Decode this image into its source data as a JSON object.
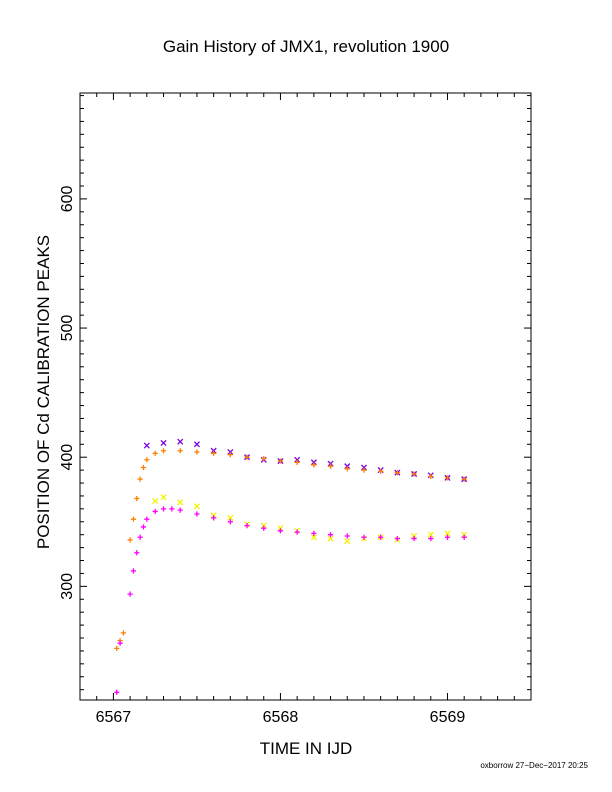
{
  "chart_data": {
    "type": "scatter",
    "title": "Gain History of JMX1, revolution 1900",
    "xlabel": "TIME IN IJD",
    "ylabel": "POSITION OF Cd CALIBRATION PEAKS",
    "xlim": [
      6566.8,
      6569.5
    ],
    "ylim": [
      212,
      682
    ],
    "x_ticks": [
      "6567",
      "6568",
      "6569"
    ],
    "y_ticks": [
      "300",
      "400",
      "500",
      "600"
    ],
    "grid": false,
    "legend": "none",
    "colors": {
      "upper_measured": "#7b00e0",
      "upper_fit": "#ff7f00",
      "lower_measured": "#f2f200",
      "lower_fit": "#ff00ff"
    },
    "series": [
      {
        "marker": "x",
        "color": "#7b00e0",
        "x": [
          6567.2,
          6567.3,
          6567.4,
          6567.5,
          6567.6,
          6567.7,
          6567.8,
          6567.9,
          6568.0,
          6568.1,
          6568.2,
          6568.3,
          6568.4,
          6568.5,
          6568.6,
          6568.7,
          6568.8,
          6568.9,
          6569.0,
          6569.1
        ],
        "y": [
          409,
          411,
          412,
          410,
          405,
          404,
          400,
          398,
          397,
          398,
          396,
          395,
          393,
          392,
          390,
          388,
          387,
          386,
          384,
          383
        ]
      },
      {
        "marker": "+",
        "color": "#ff7f00",
        "x": [
          6567.02,
          6567.04,
          6567.06,
          6567.1,
          6567.12,
          6567.14,
          6567.16,
          6567.18,
          6567.2,
          6567.25,
          6567.3,
          6567.4,
          6567.5,
          6567.6,
          6567.7,
          6567.8,
          6567.9,
          6568.0,
          6568.1,
          6568.2,
          6568.3,
          6568.4,
          6568.5,
          6568.6,
          6568.7,
          6568.8,
          6568.9,
          6569.0,
          6569.1
        ],
        "y": [
          252,
          258,
          264,
          336,
          352,
          368,
          383,
          392,
          398,
          403,
          405,
          405,
          404,
          403,
          402,
          400,
          399,
          397,
          396,
          394,
          393,
          391,
          390,
          389,
          388,
          387,
          385,
          384,
          383
        ]
      },
      {
        "marker": "x",
        "color": "#f2f200",
        "x": [
          6567.25,
          6567.3,
          6567.4,
          6567.5,
          6567.6,
          6567.7,
          6567.8,
          6567.9,
          6568.0,
          6568.1,
          6568.2,
          6568.3,
          6568.4,
          6568.5,
          6568.6,
          6568.7,
          6568.8,
          6568.9,
          6569.0,
          6569.1
        ],
        "y": [
          366,
          369,
          365,
          362,
          355,
          353,
          348,
          347,
          345,
          343,
          338,
          337,
          335,
          337,
          338,
          336,
          339,
          340,
          341,
          340
        ]
      },
      {
        "marker": "+",
        "color": "#ff00ff",
        "x": [
          6567.02,
          6567.04,
          6567.1,
          6567.12,
          6567.14,
          6567.16,
          6567.18,
          6567.2,
          6567.25,
          6567.3,
          6567.35,
          6567.4,
          6567.5,
          6567.6,
          6567.7,
          6567.8,
          6567.9,
          6568.0,
          6568.1,
          6568.2,
          6568.3,
          6568.4,
          6568.5,
          6568.6,
          6568.7,
          6568.8,
          6568.9,
          6569.0,
          6569.1
        ],
        "y": [
          218,
          256,
          294,
          312,
          326,
          338,
          346,
          352,
          358,
          360,
          360,
          359,
          356,
          353,
          350,
          347,
          345,
          343,
          342,
          341,
          340,
          339,
          338,
          338,
          337,
          337,
          337,
          338,
          338
        ]
      }
    ]
  },
  "footer": "oxborrow 27−Dec−2017 20:25"
}
